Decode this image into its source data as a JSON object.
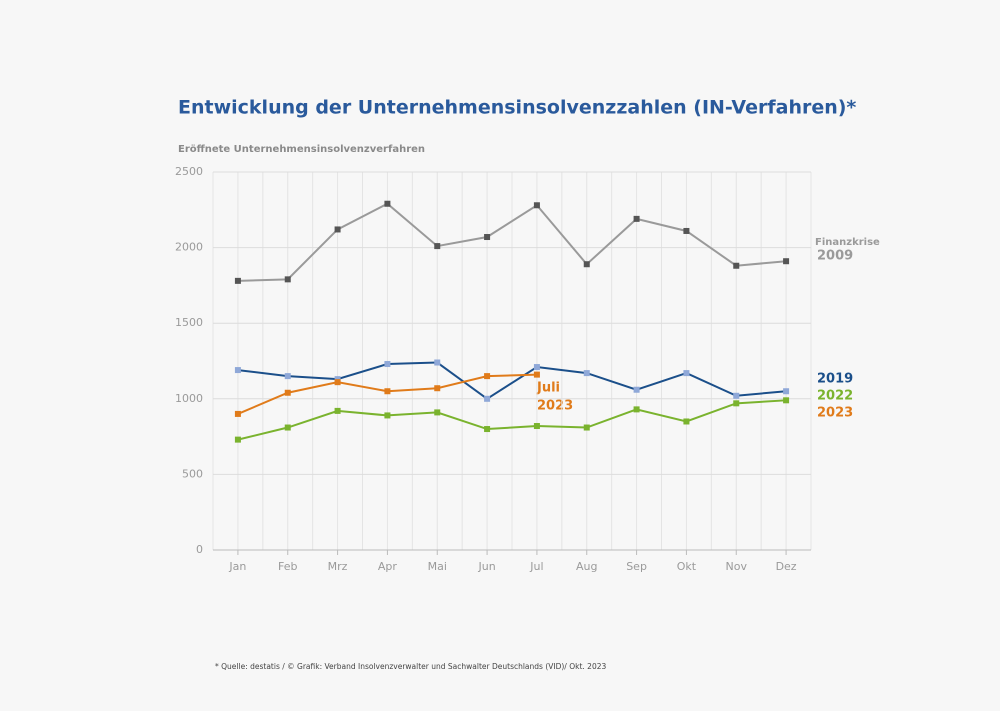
{
  "chart_data": {
    "type": "line",
    "title": "Entwicklung der Unternehmensinsolvenzzahlen (IN-Verfahren)*",
    "y_label": "Eröffnete Unternehmensinsolvenzverfahren",
    "categories": [
      "Jan",
      "Feb",
      "Mrz",
      "Apr",
      "Mai",
      "Jun",
      "Jul",
      "Aug",
      "Sep",
      "Okt",
      "Nov",
      "Dez"
    ],
    "series": [
      {
        "name": "2009",
        "color": "#9a9a9a",
        "marker_color": "#555555",
        "values": [
          1780,
          1790,
          2120,
          2290,
          2010,
          2070,
          2280,
          1890,
          2190,
          2110,
          1880,
          1910
        ]
      },
      {
        "name": "2019",
        "color": "#1b4f8a",
        "marker_color": "#8fa8d8",
        "values": [
          1190,
          1150,
          1130,
          1230,
          1240,
          1000,
          1210,
          1170,
          1060,
          1170,
          1020,
          1050
        ]
      },
      {
        "name": "2022",
        "color": "#7ab32e",
        "marker_color": "#7ab32e",
        "values": [
          730,
          810,
          920,
          890,
          910,
          800,
          820,
          810,
          930,
          850,
          970,
          990
        ]
      },
      {
        "name": "2023",
        "color": "#e07b1a",
        "marker_color": "#e07b1a",
        "values": [
          900,
          1040,
          1110,
          1050,
          1070,
          1150,
          1160,
          null,
          null,
          null,
          null,
          null
        ]
      }
    ],
    "annotations": [
      "Finanzkrise",
      "Juli",
      "2023"
    ],
    "ylim": [
      0,
      2500
    ],
    "yticks": [
      0,
      500,
      1000,
      1500,
      2000,
      2500
    ],
    "grid": true,
    "footnote": "* Quelle: destatis / © Grafik: Verband Insolvenzverwalter und Sachwalter Deutschlands (VID)/ Okt. 2023"
  }
}
